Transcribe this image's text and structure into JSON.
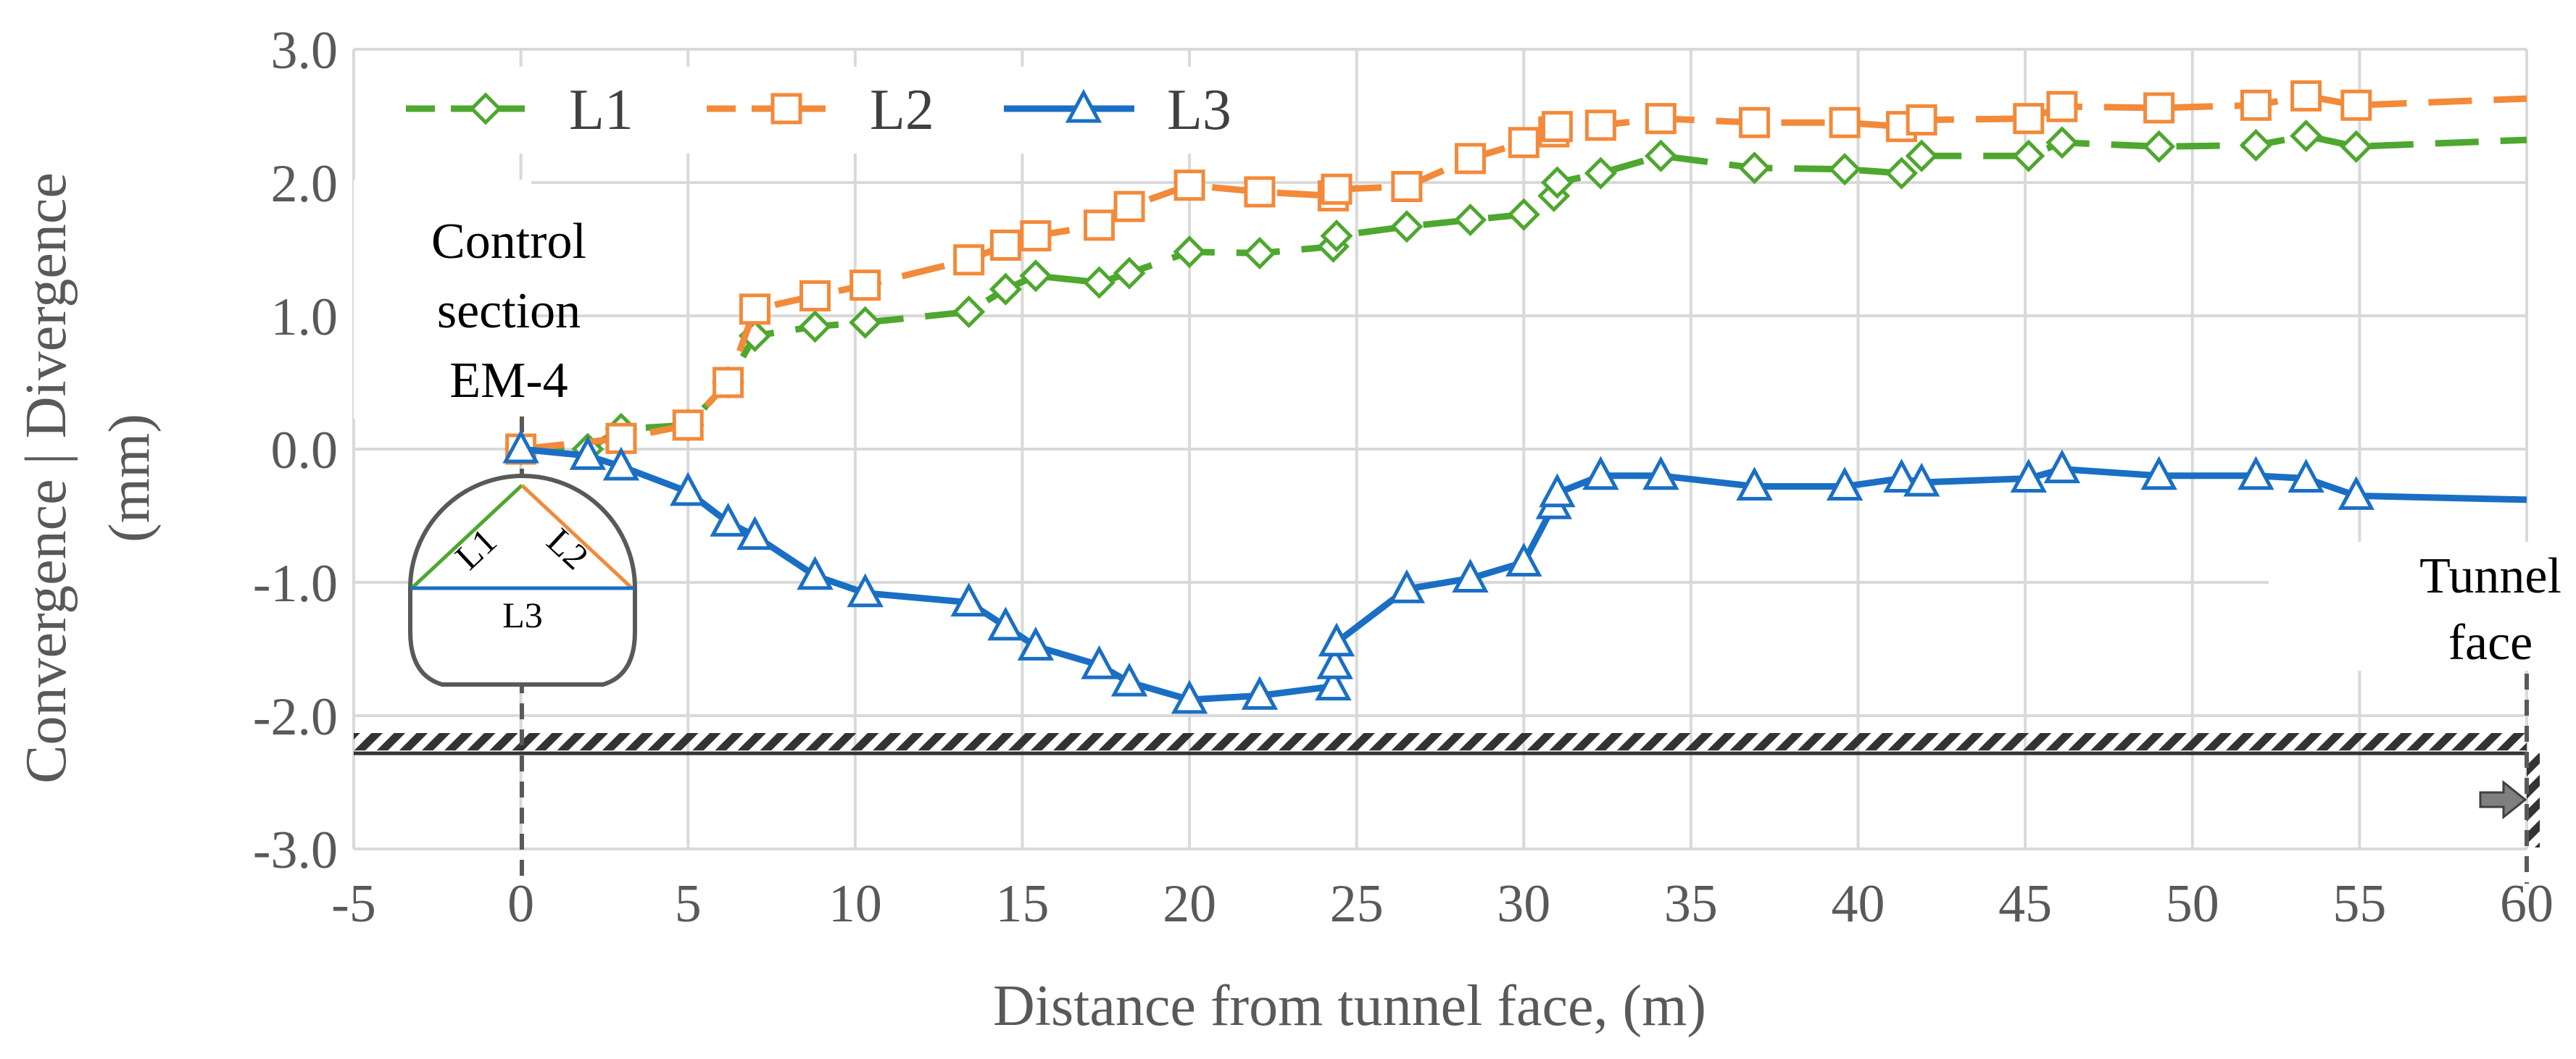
{
  "chart_data": {
    "type": "line",
    "xlabel": "Distance from tunnel face, (m)",
    "ylabel": "Convergence | Divergence (mm)",
    "xlim": [
      -5,
      60
    ],
    "ylim": [
      -3,
      3
    ],
    "x_ticks": [
      "-5",
      "0",
      "5",
      "10",
      "15",
      "20",
      "25",
      "30",
      "35",
      "40",
      "45",
      "50",
      "55",
      "60"
    ],
    "y_ticks": [
      "3.0",
      "2.0",
      "1.0",
      "0.0",
      "-1.0",
      "-2.0",
      "-3.0"
    ],
    "legend_position": "top-left",
    "series": [
      {
        "name": "L1",
        "color": "#4ea72e",
        "line_style": "dashed",
        "marker": "diamond",
        "x": [
          0,
          2,
          3,
          5,
          6.2,
          7,
          8.8,
          10.3,
          13.4,
          14.5,
          15.4,
          17.3,
          18.2,
          20,
          22.1,
          24.3,
          24.4,
          26.5,
          28.4,
          30,
          30.9,
          31,
          32.3,
          34.1,
          36.9,
          39.6,
          41.3,
          41.9,
          45.1,
          46.1,
          49,
          51.9,
          53.4,
          54.9,
          60
        ],
        "y": [
          0,
          0,
          0.15,
          0.18,
          0.5,
          0.85,
          0.92,
          0.95,
          1.03,
          1.2,
          1.3,
          1.25,
          1.32,
          1.48,
          1.47,
          1.52,
          1.6,
          1.67,
          1.72,
          1.76,
          1.9,
          2.0,
          2.07,
          2.2,
          2.11,
          2.1,
          2.07,
          2.2,
          2.2,
          2.3,
          2.27,
          2.28,
          2.35,
          2.27,
          2.32
        ]
      },
      {
        "name": "L2",
        "color": "#f28a3a",
        "line_style": "dashed",
        "marker": "square",
        "x": [
          0,
          3,
          5,
          6.2,
          7,
          8.8,
          10.3,
          13.4,
          14.5,
          15.4,
          17.3,
          18.2,
          20,
          22.1,
          24.3,
          24.4,
          26.5,
          28.4,
          30,
          30.9,
          31,
          32.3,
          34.1,
          36.9,
          39.6,
          41.3,
          41.9,
          45.1,
          46.1,
          49,
          51.9,
          53.4,
          54.9,
          60
        ],
        "y": [
          0,
          0.08,
          0.18,
          0.5,
          1.05,
          1.15,
          1.23,
          1.42,
          1.53,
          1.6,
          1.68,
          1.82,
          1.98,
          1.93,
          1.9,
          1.95,
          1.97,
          2.18,
          2.3,
          2.38,
          2.42,
          2.43,
          2.48,
          2.45,
          2.45,
          2.42,
          2.47,
          2.48,
          2.57,
          2.56,
          2.58,
          2.65,
          2.58,
          2.63
        ]
      },
      {
        "name": "L3",
        "color": "#1a6fc4",
        "line_style": "solid",
        "marker": "triangle",
        "x": [
          0,
          2,
          3,
          5,
          6.2,
          7,
          8.8,
          10.3,
          13.4,
          14.5,
          15.4,
          17.3,
          18.2,
          20,
          22.1,
          24.3,
          24.35,
          24.4,
          26.5,
          28.4,
          30,
          30.9,
          31,
          32.3,
          34.1,
          36.9,
          39.6,
          41.3,
          41.9,
          45.1,
          46.1,
          49,
          51.9,
          53.4,
          54.9,
          60
        ],
        "y": [
          0,
          -0.05,
          -0.13,
          -0.32,
          -0.55,
          -0.65,
          -0.95,
          -1.08,
          -1.15,
          -1.33,
          -1.48,
          -1.62,
          -1.75,
          -1.88,
          -1.85,
          -1.78,
          -1.62,
          -1.45,
          -1.05,
          -0.97,
          -0.85,
          -0.42,
          -0.33,
          -0.2,
          -0.2,
          -0.28,
          -0.28,
          -0.22,
          -0.25,
          -0.22,
          -0.15,
          -0.2,
          -0.2,
          -0.22,
          -0.35,
          -0.38
        ]
      }
    ],
    "annotations": {
      "control_section": [
        "Control",
        "section",
        "EM-4"
      ],
      "tunnel_face": [
        "Tunnel",
        "face"
      ],
      "section_labels": [
        "L1",
        "L2",
        "L3"
      ]
    }
  }
}
